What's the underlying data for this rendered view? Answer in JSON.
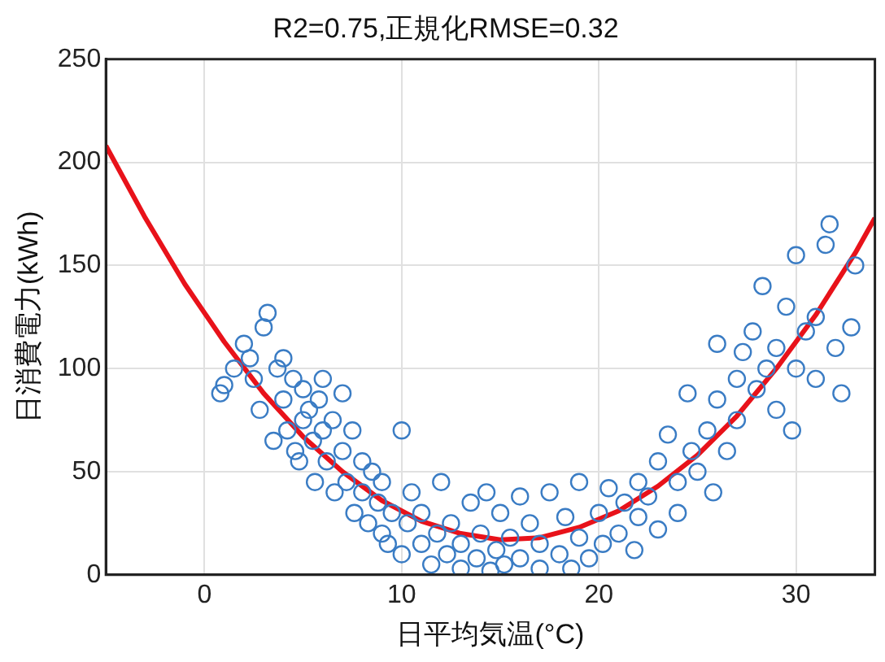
{
  "chart_data": {
    "type": "scatter",
    "title": "R2=0.75,正規化RMSE=0.32",
    "xlabel": "日平均気温(°C)",
    "ylabel": "日消費電力(kWh)",
    "xlim": [
      -5,
      34
    ],
    "xticks": [
      0,
      10,
      20,
      30
    ],
    "ylim": [
      0,
      250
    ],
    "yticks": [
      0,
      50,
      100,
      150,
      200,
      250
    ],
    "grid": true,
    "legend": false,
    "marker": "circle",
    "series": [
      {
        "color": "#3a7cc4",
        "x": [
          0.8,
          1,
          1.5,
          2,
          2.3,
          2.5,
          2.8,
          3,
          3.2,
          3.5,
          3.7,
          4,
          4,
          4.2,
          4.5,
          4.6,
          4.8,
          5,
          5,
          5.3,
          5.5,
          5.6,
          5.8,
          6,
          6,
          6.2,
          6.5,
          6.6,
          7,
          7,
          7.2,
          7.5,
          7.6,
          8,
          8,
          8.3,
          8.5,
          8.8,
          9,
          9,
          9.3,
          9.5,
          10,
          10,
          10.3,
          10.5,
          11,
          11,
          11.5,
          11.8,
          12,
          12.3,
          12.5,
          13,
          13,
          13.5,
          13.8,
          14,
          14.3,
          14.5,
          14.8,
          15,
          15.2,
          15.5,
          16,
          16,
          16.5,
          17,
          17,
          17.5,
          18,
          18.3,
          18.6,
          19,
          19,
          19.5,
          20,
          20.2,
          20.5,
          21,
          21.3,
          21.8,
          22,
          22,
          22.5,
          23,
          23,
          23.5,
          24,
          24,
          24.5,
          24.7,
          25,
          25.5,
          25.8,
          26,
          26,
          26.5,
          27,
          27,
          27.3,
          27.8,
          28,
          28.3,
          28.5,
          29,
          29,
          29.5,
          29.8,
          30,
          30,
          30.5,
          31,
          31,
          31.5,
          31.7,
          32,
          32.3,
          32.8,
          33
        ],
        "values": [
          88,
          92,
          100,
          112,
          105,
          95,
          80,
          120,
          127,
          65,
          100,
          105,
          85,
          70,
          95,
          60,
          55,
          90,
          75,
          80,
          65,
          45,
          85,
          95,
          70,
          55,
          75,
          40,
          88,
          60,
          45,
          70,
          30,
          55,
          40,
          25,
          50,
          35,
          20,
          45,
          15,
          30,
          70,
          10,
          25,
          40,
          15,
          30,
          5,
          20,
          45,
          10,
          25,
          3,
          15,
          35,
          8,
          20,
          40,
          2,
          12,
          30,
          5,
          18,
          38,
          8,
          25,
          3,
          15,
          40,
          10,
          28,
          3,
          45,
          18,
          8,
          30,
          15,
          42,
          20,
          35,
          12,
          45,
          28,
          38,
          55,
          22,
          68,
          45,
          30,
          88,
          60,
          50,
          70,
          40,
          112,
          85,
          60,
          95,
          75,
          108,
          118,
          90,
          140,
          100,
          110,
          80,
          130,
          70,
          155,
          100,
          118,
          95,
          125,
          160,
          170,
          110,
          88,
          120,
          150
        ]
      },
      {
        "type": "line",
        "color": "#e8121a",
        "marker": "none",
        "x": [
          -5,
          -3,
          -1,
          1,
          3,
          5,
          7,
          9,
          11,
          13,
          15,
          17,
          19,
          21,
          23,
          25,
          27,
          29,
          31,
          33,
          34
        ],
        "values": [
          208,
          173,
          141,
          113,
          88,
          67,
          50,
          36,
          26,
          20,
          17,
          18,
          23,
          31,
          43,
          58,
          77,
          100,
          126,
          156,
          173
        ]
      }
    ]
  }
}
